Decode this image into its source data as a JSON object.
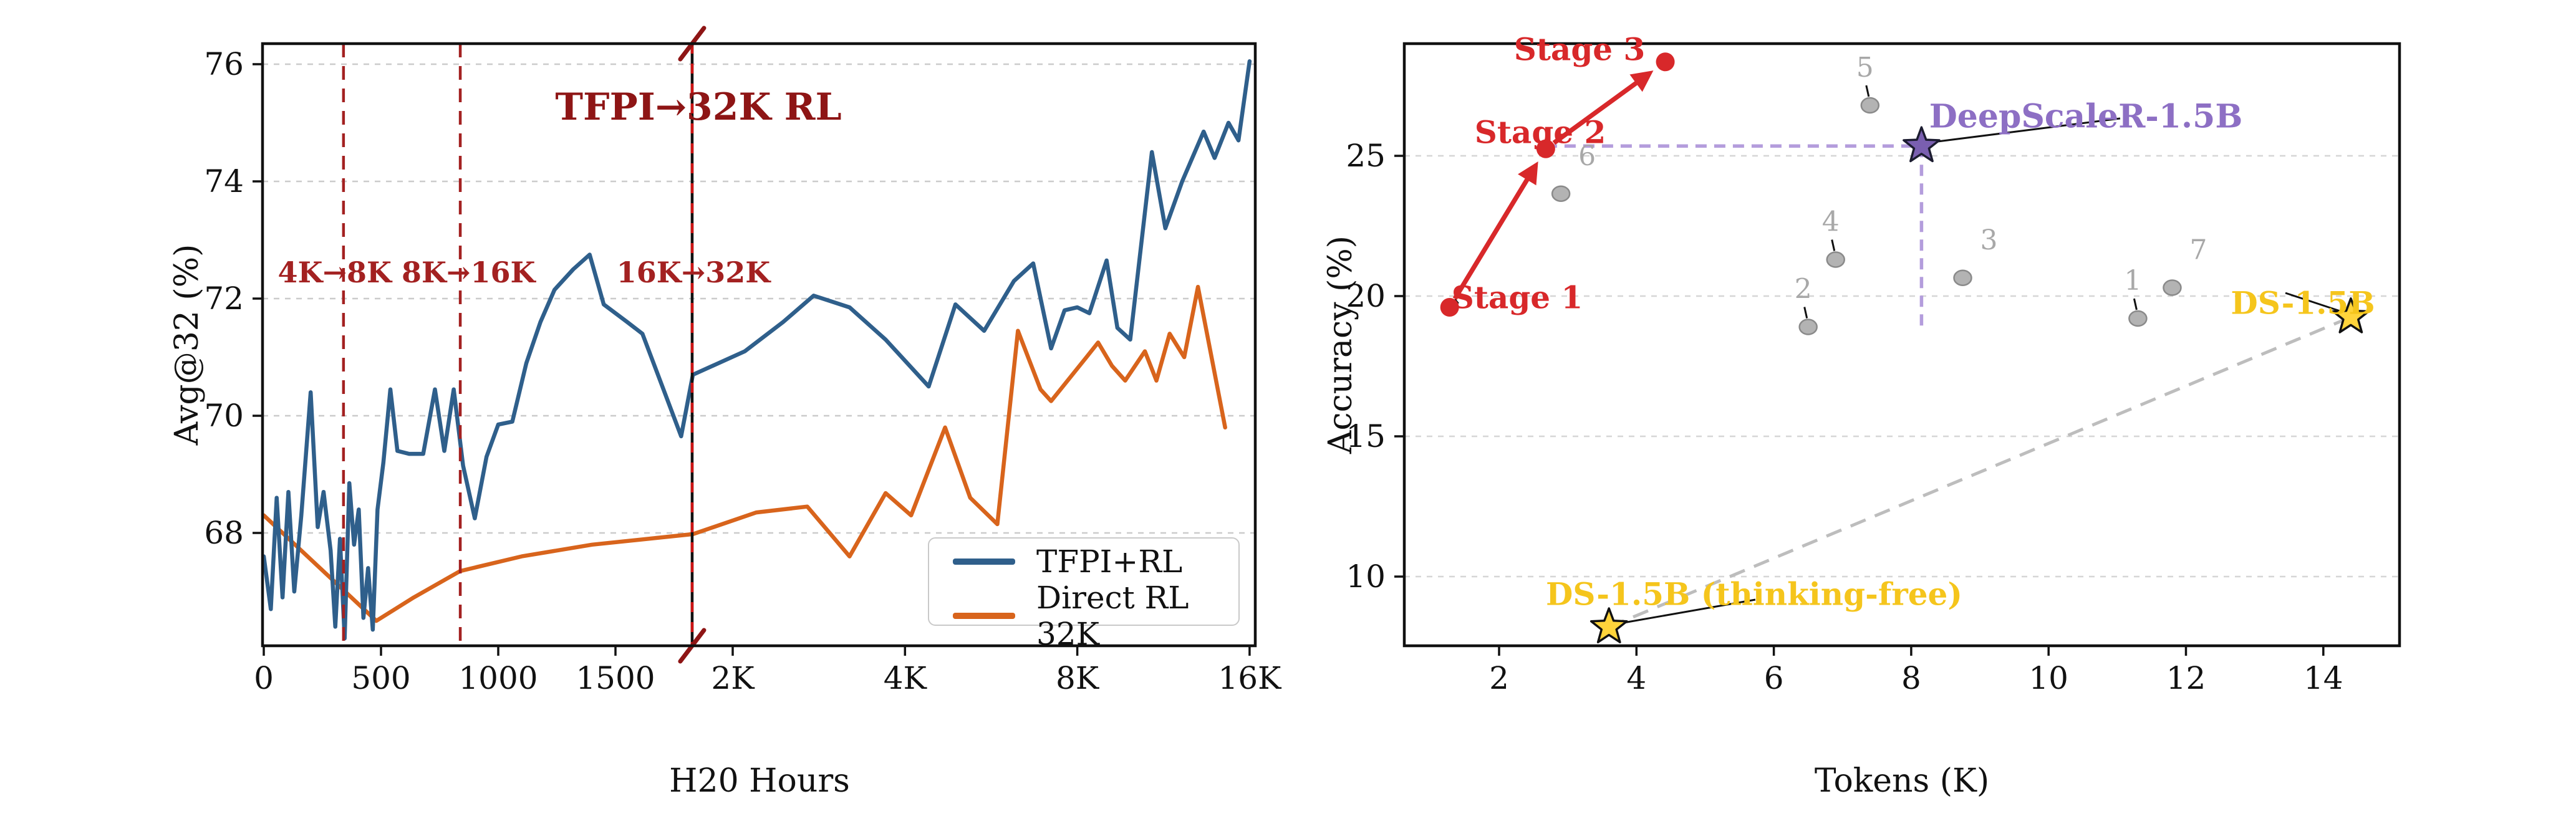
{
  "figure": {
    "background": "#ffffff",
    "description_colors": {
      "tfpi_blue": "#2f5f8b",
      "direct_orange": "#d8641c",
      "dark_red": "#8e1515",
      "stage_red": "#d8282a",
      "deepscaler_purple": "#8d6fc4",
      "ds_gold": "#f5c51c",
      "gray_point": "#b3b3b3",
      "grid_gray": "#cbcbcb"
    }
  },
  "chart_data": [
    {
      "id": "training-curve",
      "type": "line",
      "title": "TFPI→32K RL",
      "xlabel": "H20 Hours",
      "ylabel": "Avg@32 (%)",
      "x_scale": {
        "type": "linear-then-log",
        "linear_range": [
          0,
          2000
        ],
        "log_range": [
          2000,
          16000
        ]
      },
      "ylim": [
        66.05,
        76.35
      ],
      "x_ticks": [
        {
          "v": 0,
          "label": "0"
        },
        {
          "v": 500,
          "label": "500"
        },
        {
          "v": 1000,
          "label": "1000"
        },
        {
          "v": 1500,
          "label": "1500"
        },
        {
          "v": 2000,
          "label": "2K"
        },
        {
          "v": 4000,
          "label": "4K"
        },
        {
          "v": 8000,
          "label": "8K"
        },
        {
          "v": 16000,
          "label": "16K"
        }
      ],
      "y_ticks": [
        {
          "v": 68,
          "label": "68"
        },
        {
          "v": 70,
          "label": "70"
        },
        {
          "v": 72,
          "label": "72"
        },
        {
          "v": 74,
          "label": "74"
        },
        {
          "v": 76,
          "label": "76"
        }
      ],
      "grid": "dashed-horizontal",
      "legend_position": "lower right",
      "vlines": [
        {
          "x": 340,
          "style": "dashed",
          "color": "#a32121"
        },
        {
          "x": 838,
          "style": "dashed",
          "color": "#a32121"
        },
        {
          "x": 1827,
          "style": "solid-with-red-dashes",
          "color": "#111111",
          "overlay_color": "#cc1414",
          "break_marks": true
        }
      ],
      "annotations": [
        {
          "text": "4K→8K 8K→16K",
          "x": 600,
          "y": 72.45
        },
        {
          "text": "16K→32K",
          "x": 1827,
          "y": 72.45
        }
      ],
      "series": [
        {
          "name": "TFPI+RL",
          "color": "#2f5f8b",
          "points": [
            [
              0,
              67.6
            ],
            [
              30,
              66.7
            ],
            [
              55,
              68.6
            ],
            [
              80,
              66.9
            ],
            [
              105,
              68.7
            ],
            [
              130,
              67.0
            ],
            [
              160,
              68.3
            ],
            [
              200,
              70.4
            ],
            [
              230,
              68.1
            ],
            [
              255,
              68.7
            ],
            [
              285,
              67.7
            ],
            [
              305,
              66.4
            ],
            [
              325,
              67.9
            ],
            [
              345,
              66.2
            ],
            [
              365,
              68.85
            ],
            [
              385,
              67.8
            ],
            [
              405,
              68.4
            ],
            [
              425,
              66.55
            ],
            [
              445,
              67.4
            ],
            [
              465,
              66.35
            ],
            [
              485,
              68.4
            ],
            [
              510,
              69.2
            ],
            [
              540,
              70.45
            ],
            [
              570,
              69.4
            ],
            [
              620,
              69.35
            ],
            [
              680,
              69.35
            ],
            [
              730,
              70.45
            ],
            [
              770,
              69.4
            ],
            [
              810,
              70.45
            ],
            [
              850,
              69.15
            ],
            [
              900,
              68.25
            ],
            [
              950,
              69.3
            ],
            [
              1000,
              69.85
            ],
            [
              1060,
              69.9
            ],
            [
              1120,
              70.9
            ],
            [
              1180,
              71.6
            ],
            [
              1240,
              72.15
            ],
            [
              1320,
              72.5
            ],
            [
              1390,
              72.75
            ],
            [
              1450,
              71.9
            ],
            [
              1550,
              71.6
            ],
            [
              1615,
              71.4
            ],
            [
              1700,
              70.5
            ],
            [
              1780,
              69.65
            ],
            [
              1830,
              70.7
            ],
            [
              2100,
              71.1
            ],
            [
              2450,
              71.6
            ],
            [
              2770,
              72.05
            ],
            [
              3200,
              71.85
            ],
            [
              3700,
              71.3
            ],
            [
              4400,
              70.5
            ],
            [
              4900,
              71.9
            ],
            [
              5500,
              71.45
            ],
            [
              6200,
              72.3
            ],
            [
              6700,
              72.6
            ],
            [
              7200,
              71.15
            ],
            [
              7600,
              71.8
            ],
            [
              8000,
              71.85
            ],
            [
              8400,
              71.75
            ],
            [
              9000,
              72.65
            ],
            [
              9400,
              71.5
            ],
            [
              9900,
              71.3
            ],
            [
              10800,
              74.5
            ],
            [
              11400,
              73.2
            ],
            [
              12200,
              74.0
            ],
            [
              13300,
              74.85
            ],
            [
              13900,
              74.4
            ],
            [
              14700,
              75.0
            ],
            [
              15300,
              74.7
            ],
            [
              16000,
              76.05
            ]
          ]
        },
        {
          "name": "Direct RL 32K",
          "color": "#d8641c",
          "points": [
            [
              0,
              68.3
            ],
            [
              240,
              67.4
            ],
            [
              480,
              66.5
            ],
            [
              640,
              66.9
            ],
            [
              838,
              67.35
            ],
            [
              1100,
              67.6
            ],
            [
              1400,
              67.8
            ],
            [
              1830,
              67.98
            ],
            [
              2200,
              68.35
            ],
            [
              2700,
              68.45
            ],
            [
              3200,
              67.6
            ],
            [
              3700,
              68.68
            ],
            [
              4100,
              68.3
            ],
            [
              4700,
              69.8
            ],
            [
              5200,
              68.6
            ],
            [
              5800,
              68.15
            ],
            [
              6300,
              71.45
            ],
            [
              6900,
              70.45
            ],
            [
              7200,
              70.25
            ],
            [
              8300,
              71.0
            ],
            [
              8700,
              71.25
            ],
            [
              9200,
              70.85
            ],
            [
              9700,
              70.6
            ],
            [
              10500,
              71.1
            ],
            [
              11000,
              70.6
            ],
            [
              11600,
              71.4
            ],
            [
              12300,
              71.0
            ],
            [
              13000,
              72.2
            ],
            [
              14500,
              69.8
            ]
          ]
        }
      ]
    },
    {
      "id": "token-efficiency",
      "type": "scatter",
      "xlabel": "Tokens (K)",
      "ylabel": "Accuracy (%)",
      "xlim": [
        0.62,
        15.15
      ],
      "ylim": [
        7.53,
        29.0
      ],
      "x_ticks": [
        {
          "v": 2,
          "label": "2"
        },
        {
          "v": 4,
          "label": "4"
        },
        {
          "v": 6,
          "label": "6"
        },
        {
          "v": 8,
          "label": "8"
        },
        {
          "v": 10,
          "label": "10"
        },
        {
          "v": 12,
          "label": "12"
        },
        {
          "v": 14,
          "label": "14"
        }
      ],
      "y_ticks": [
        {
          "v": 10,
          "label": "10"
        },
        {
          "v": 15,
          "label": "15"
        },
        {
          "v": 20,
          "label": "20"
        },
        {
          "v": 25,
          "label": "25"
        }
      ],
      "grid": "dashed-horizontal",
      "stages": {
        "color": "#d8282a",
        "points": [
          {
            "label": "Stage 1",
            "x": 1.28,
            "y": 19.6
          },
          {
            "label": "Stage 2",
            "x": 2.68,
            "y": 25.25
          },
          {
            "label": "Stage 3",
            "x": 4.42,
            "y": 28.35
          }
        ]
      },
      "gray_points": [
        {
          "label": "1",
          "x": 11.3,
          "y": 19.2,
          "leader": true
        },
        {
          "label": "2",
          "x": 6.5,
          "y": 18.9,
          "leader": true
        },
        {
          "label": "3",
          "x": 8.75,
          "y": 20.65,
          "leader": false
        },
        {
          "label": "4",
          "x": 6.9,
          "y": 21.3,
          "leader": true
        },
        {
          "label": "5",
          "x": 7.4,
          "y": 26.8,
          "leader": true
        },
        {
          "label": "6",
          "x": 2.9,
          "y": 23.65,
          "leader": false
        },
        {
          "label": "7",
          "x": 11.8,
          "y": 20.3,
          "leader": false
        }
      ],
      "stars": [
        {
          "name": "DeepScaleR-1.5B",
          "x": 8.15,
          "y": 25.35,
          "fill": "#7a5fb0",
          "edge": "#1c1c30",
          "label_color": "#8d6fc4"
        },
        {
          "name": "DS-1.5B",
          "x": 14.4,
          "y": 19.25,
          "fill": "#ffd43b",
          "edge": "#111111",
          "label_color": "#f5c51c"
        },
        {
          "name": "DS-1.5B (thinking-free)",
          "x": 3.6,
          "y": 8.2,
          "fill": "#ffd43b",
          "edge": "#111111",
          "label_color": "#f5c51c"
        }
      ],
      "ref_lines": {
        "purple_horizontal": {
          "y": 25.35,
          "x1": 2.68,
          "x2": 8.15,
          "color": "#b49ddc"
        },
        "purple_vertical": {
          "x": 8.15,
          "y1": 25.35,
          "y2": 18.7,
          "color": "#b49ddc"
        },
        "gray_diagonal": {
          "from": [
            3.6,
            8.2
          ],
          "to": [
            14.4,
            19.25
          ],
          "color": "#bdbdbd"
        }
      }
    }
  ]
}
